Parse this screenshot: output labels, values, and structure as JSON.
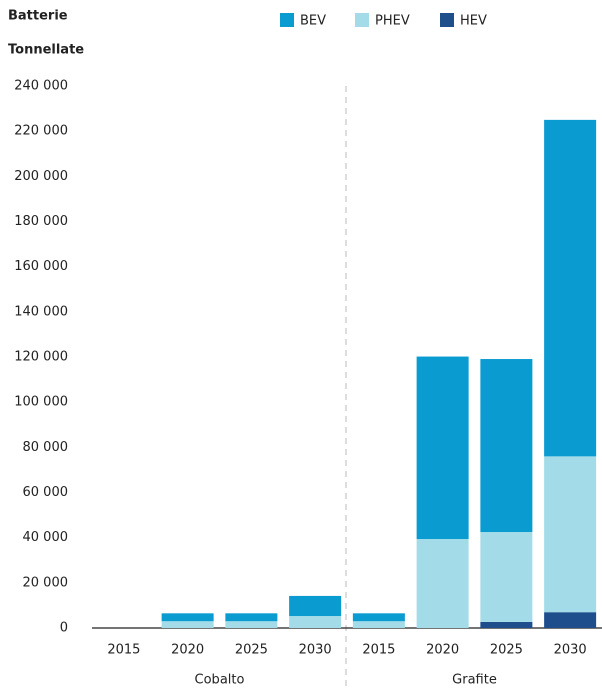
{
  "chart_data": {
    "type": "stacked_bar",
    "title": "Batterie",
    "y_label": "Tonnellate",
    "groups": [
      "Cobalto",
      "Grafite"
    ],
    "categories": [
      "2015",
      "2020",
      "2025",
      "2030",
      "2015",
      "2020",
      "2025",
      "2030"
    ],
    "series": [
      {
        "name": "BEV",
        "color": "#0a9bd0",
        "values": [
          0,
          3500,
          3500,
          8900,
          3500,
          80800,
          76600,
          149000
        ]
      },
      {
        "name": "PHEV",
        "color": "#a3dce8",
        "values": [
          0,
          3000,
          3000,
          5300,
          3000,
          39400,
          39800,
          69000
        ]
      },
      {
        "name": "HEV",
        "color": "#1f4e8c",
        "values": [
          0,
          0,
          0,
          0,
          0,
          0,
          2700,
          7000
        ]
      }
    ],
    "ylim": [
      0,
      240000
    ],
    "yticks": [
      0,
      {
        "value": 20000,
        "label": "20 000"
      },
      {
        "value": 40000,
        "label": "40 000"
      },
      {
        "value": 60000,
        "label": "60 000"
      },
      {
        "value": 80000,
        "label": "80 000"
      },
      {
        "value": 100000,
        "label": "100 000"
      },
      {
        "value": 120000,
        "label": "120 000"
      },
      {
        "value": 140000,
        "label": "140 000"
      },
      {
        "value": 160000,
        "label": "160 000"
      },
      {
        "value": 180000,
        "label": "180 000"
      },
      {
        "value": 200000,
        "label": "200 000"
      },
      {
        "value": 220000,
        "label": "220 000"
      },
      {
        "value": 240000,
        "label": "240 000"
      }
    ],
    "grid": false,
    "legend": "top"
  }
}
